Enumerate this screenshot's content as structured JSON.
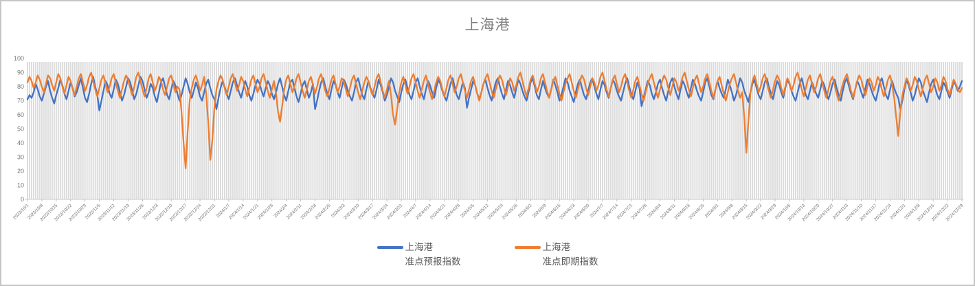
{
  "window": {
    "border_color": "#c5c5c5",
    "background": "#ffffff"
  },
  "chart": {
    "title": "上海港"
  },
  "legend": {
    "items": [
      {
        "line1": "上海港",
        "line2": "准点预报指数",
        "color": "#4472C4"
      },
      {
        "line1": "上海港",
        "line2": "准点即期指数",
        "color": "#ED7D31"
      }
    ]
  },
  "chart_data": {
    "type": "line",
    "title": "上海港",
    "xlabel": "",
    "ylabel": "",
    "ylim": [
      0,
      100
    ],
    "y_ticks": [
      0,
      10,
      20,
      30,
      40,
      50,
      60,
      70,
      80,
      90,
      100
    ],
    "grid": "vertical-daily-gridlines",
    "legend_position": "bottom-center",
    "x_unit": "day",
    "x_tick_interval": "weekly",
    "x_labels": [
      "2023/10/1",
      "2023/10/8",
      "2023/10/15",
      "2023/10/22",
      "2023/10/29",
      "2023/11/5",
      "2023/11/12",
      "2023/11/19",
      "2023/11/26",
      "2023/12/3",
      "2023/12/10",
      "2023/12/17",
      "2023/12/24",
      "2023/12/31",
      "2024/1/7",
      "2024/1/14",
      "2024/1/21",
      "2024/1/28",
      "2024/2/4",
      "2024/2/11",
      "2024/2/18",
      "2024/2/25",
      "2024/3/3",
      "2024/3/10",
      "2024/3/17",
      "2024/3/24",
      "2024/3/31",
      "2024/4/7",
      "2024/4/14",
      "2024/4/21",
      "2024/4/28",
      "2024/5/5",
      "2024/5/12",
      "2024/5/19",
      "2024/5/26",
      "2024/6/2",
      "2024/6/9",
      "2024/6/16",
      "2024/6/23",
      "2024/6/30",
      "2024/7/7",
      "2024/7/14",
      "2024/7/21",
      "2024/7/28",
      "2024/8/4",
      "2024/8/11",
      "2024/8/18",
      "2024/8/25",
      "2024/9/1",
      "2024/9/8",
      "2024/9/15",
      "2024/9/22",
      "2024/9/29",
      "2024/10/6",
      "2024/10/13",
      "2024/10/20",
      "2024/10/27",
      "2024/11/3",
      "2024/11/10",
      "2024/11/17",
      "2024/11/24",
      "2024/12/1",
      "2024/12/8",
      "2024/12/15",
      "2024/12/22",
      "2024/12/29"
    ],
    "colors": {
      "gridline": "#DBDBDB",
      "axis": "#C9C9C9",
      "tick_text": "#757575"
    },
    "series": [
      {
        "name": "上海港 准点预报指数",
        "color": "#4472C4",
        "values": [
          71,
          74,
          72,
          76,
          82,
          78,
          73,
          70,
          75,
          80,
          84,
          77,
          72,
          68,
          74,
          79,
          85,
          81,
          75,
          71,
          77,
          83,
          79,
          73,
          76,
          81,
          86,
          79,
          72,
          69,
          75,
          82,
          87,
          80,
          74,
          63,
          70,
          77,
          84,
          81,
          75,
          72,
          78,
          85,
          82,
          76,
          70,
          74,
          80,
          86,
          83,
          77,
          71,
          75,
          81,
          87,
          84,
          78,
          72,
          76,
          82,
          79,
          73,
          69,
          76,
          83,
          86,
          80,
          74,
          71,
          78,
          84,
          81,
          75,
          70,
          74,
          80,
          86,
          82,
          76,
          72,
          77,
          83,
          79,
          73,
          70,
          76,
          82,
          85,
          79,
          74,
          71,
          64,
          72,
          79,
          84,
          80,
          75,
          71,
          77,
          83,
          86,
          81,
          76,
          72,
          78,
          84,
          80,
          74,
          70,
          75,
          81,
          85,
          82,
          77,
          73,
          79,
          84,
          81,
          75,
          71,
          76,
          82,
          86,
          80,
          74,
          70,
          77,
          83,
          85,
          79,
          73,
          69,
          75,
          81,
          84,
          78,
          72,
          76,
          82,
          64,
          70,
          77,
          83,
          86,
          80,
          75,
          71,
          78,
          84,
          81,
          76,
          72,
          79,
          85,
          82,
          77,
          73,
          70,
          76,
          83,
          86,
          80,
          74,
          71,
          78,
          84,
          79,
          75,
          72,
          78,
          85,
          81,
          76,
          70,
          74,
          80,
          86,
          83,
          77,
          73,
          69,
          76,
          82,
          85,
          79,
          74,
          71,
          77,
          83,
          86,
          80,
          75,
          71,
          78,
          84,
          81,
          76,
          72,
          79,
          85,
          82,
          77,
          73,
          70,
          76,
          82,
          86,
          80,
          74,
          71,
          77,
          83,
          79,
          65,
          72,
          78,
          84,
          81,
          75,
          71,
          76,
          82,
          85,
          79,
          74,
          70,
          77,
          83,
          86,
          80,
          75,
          71,
          78,
          84,
          81,
          76,
          72,
          79,
          85,
          82,
          77,
          73,
          70,
          76,
          83,
          86,
          80,
          74,
          71,
          78,
          84,
          79,
          75,
          72,
          78,
          85,
          81,
          76,
          70,
          74,
          80,
          86,
          83,
          77,
          73,
          69,
          76,
          82,
          85,
          79,
          74,
          71,
          77,
          83,
          86,
          80,
          75,
          71,
          78,
          84,
          81,
          76,
          72,
          79,
          85,
          82,
          77,
          73,
          70,
          76,
          82,
          86,
          80,
          74,
          71,
          77,
          83,
          79,
          66,
          72,
          78,
          84,
          81,
          75,
          71,
          76,
          82,
          85,
          79,
          74,
          70,
          77,
          83,
          86,
          80,
          75,
          71,
          78,
          84,
          81,
          76,
          72,
          79,
          85,
          82,
          77,
          73,
          70,
          76,
          83,
          86,
          80,
          74,
          71,
          78,
          84,
          79,
          75,
          72,
          78,
          85,
          81,
          76,
          70,
          74,
          80,
          86,
          83,
          77,
          73,
          69,
          76,
          82,
          85,
          79,
          74,
          71,
          77,
          83,
          86,
          80,
          75,
          71,
          78,
          84,
          81,
          76,
          72,
          79,
          85,
          82,
          77,
          73,
          70,
          76,
          82,
          86,
          80,
          74,
          71,
          77,
          83,
          79,
          75,
          72,
          78,
          84,
          81,
          75,
          71,
          76,
          82,
          85,
          79,
          74,
          70,
          77,
          83,
          86,
          80,
          75,
          71,
          78,
          84,
          81,
          76,
          72,
          79,
          85,
          82,
          77,
          73,
          70,
          76,
          83,
          86,
          80,
          74,
          71,
          78,
          84,
          79,
          75,
          72,
          64,
          70,
          78,
          85,
          81,
          76,
          70,
          74,
          80,
          86,
          83,
          77,
          73,
          69,
          76,
          82,
          85,
          79,
          74,
          71,
          77,
          83,
          80,
          76,
          72,
          78,
          84,
          81,
          77,
          80,
          84
        ]
      },
      {
        "name": "上海港 准点即期指数",
        "color": "#ED7D31",
        "values": [
          83,
          87,
          84,
          79,
          83,
          88,
          85,
          80,
          76,
          82,
          88,
          86,
          81,
          77,
          83,
          89,
          86,
          80,
          75,
          81,
          87,
          84,
          78,
          74,
          80,
          86,
          89,
          83,
          77,
          81,
          87,
          90,
          84,
          78,
          73,
          79,
          85,
          88,
          82,
          76,
          80,
          86,
          89,
          83,
          77,
          72,
          78,
          84,
          88,
          85,
          79,
          74,
          80,
          87,
          90,
          84,
          78,
          73,
          79,
          86,
          89,
          83,
          77,
          81,
          87,
          84,
          78,
          74,
          80,
          86,
          88,
          82,
          76,
          80,
          78,
          62,
          40,
          22,
          48,
          70,
          79,
          85,
          88,
          83,
          77,
          81,
          87,
          75,
          55,
          28,
          42,
          65,
          78,
          84,
          88,
          85,
          79,
          74,
          80,
          86,
          89,
          83,
          77,
          81,
          87,
          84,
          78,
          73,
          79,
          85,
          88,
          82,
          76,
          80,
          86,
          89,
          83,
          77,
          72,
          78,
          84,
          75,
          62,
          55,
          66,
          78,
          85,
          88,
          82,
          76,
          80,
          86,
          89,
          83,
          77,
          72,
          78,
          84,
          87,
          81,
          75,
          80,
          86,
          89,
          83,
          77,
          73,
          79,
          85,
          88,
          82,
          76,
          80,
          86,
          84,
          78,
          73,
          79,
          85,
          88,
          82,
          76,
          71,
          77,
          83,
          87,
          84,
          78,
          74,
          80,
          86,
          89,
          83,
          77,
          72,
          78,
          84,
          74,
          60,
          53,
          64,
          76,
          83,
          87,
          81,
          75,
          80,
          86,
          89,
          83,
          77,
          72,
          78,
          84,
          88,
          82,
          76,
          71,
          77,
          83,
          87,
          84,
          78,
          73,
          79,
          85,
          88,
          82,
          76,
          80,
          86,
          89,
          83,
          77,
          72,
          78,
          84,
          87,
          81,
          75,
          70,
          76,
          82,
          86,
          89,
          83,
          77,
          72,
          78,
          84,
          88,
          85,
          79,
          74,
          80,
          86,
          83,
          77,
          81,
          87,
          90,
          84,
          78,
          73,
          79,
          85,
          88,
          82,
          76,
          80,
          86,
          89,
          83,
          77,
          72,
          78,
          84,
          87,
          81,
          75,
          70,
          76,
          82,
          86,
          89,
          83,
          77,
          72,
          78,
          84,
          88,
          85,
          79,
          74,
          80,
          86,
          83,
          77,
          81,
          87,
          90,
          84,
          78,
          73,
          79,
          85,
          88,
          82,
          76,
          80,
          86,
          89,
          83,
          77,
          72,
          78,
          84,
          87,
          81,
          75,
          70,
          76,
          82,
          86,
          89,
          83,
          77,
          72,
          78,
          84,
          88,
          85,
          79,
          74,
          80,
          86,
          83,
          77,
          81,
          87,
          90,
          84,
          78,
          73,
          79,
          85,
          88,
          82,
          76,
          80,
          86,
          89,
          83,
          77,
          72,
          78,
          84,
          87,
          81,
          75,
          70,
          76,
          82,
          86,
          89,
          83,
          77,
          72,
          76,
          58,
          33,
          55,
          75,
          84,
          88,
          82,
          76,
          80,
          86,
          89,
          83,
          77,
          72,
          78,
          84,
          88,
          85,
          79,
          74,
          80,
          86,
          83,
          77,
          81,
          87,
          90,
          84,
          78,
          73,
          79,
          85,
          88,
          82,
          76,
          80,
          86,
          89,
          83,
          77,
          72,
          78,
          84,
          87,
          81,
          75,
          70,
          76,
          82,
          86,
          89,
          83,
          77,
          72,
          78,
          84,
          88,
          85,
          79,
          74,
          80,
          86,
          83,
          77,
          81,
          87,
          84,
          78,
          73,
          79,
          85,
          88,
          82,
          72,
          58,
          45,
          62,
          74,
          80,
          86,
          83,
          77,
          81,
          87,
          84,
          78,
          73,
          79,
          85,
          88,
          82,
          76,
          80,
          86,
          83,
          77,
          81,
          87,
          84,
          78,
          74,
          80,
          85,
          82,
          78,
          76,
          79
        ]
      }
    ]
  }
}
